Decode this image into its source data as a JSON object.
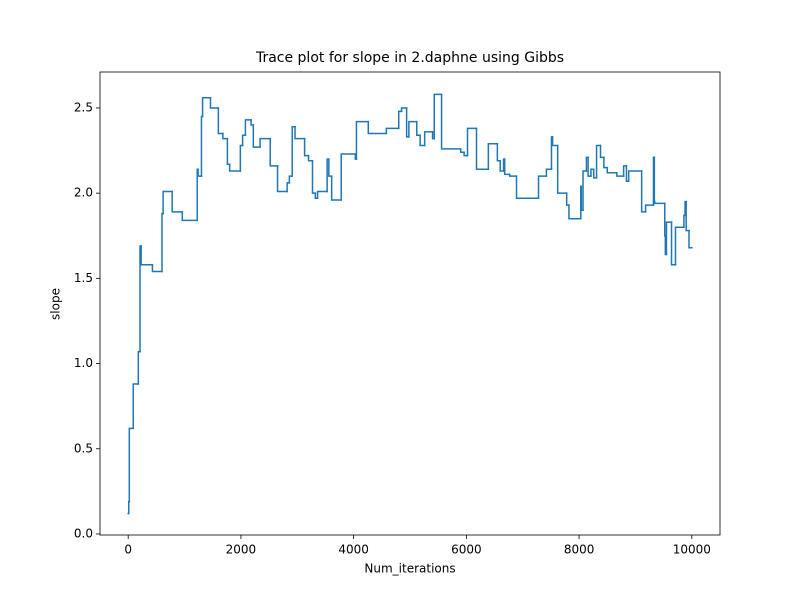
{
  "chart_data": {
    "type": "line",
    "drawstyle": "steps-post",
    "title": "Trace plot for slope in 2.daphne using Gibbs",
    "xlabel": "Num_iterations",
    "ylabel": "slope",
    "xlim": [
      -500,
      10500
    ],
    "ylim": [
      -0.006,
      2.711
    ],
    "xticks": [
      0,
      2000,
      4000,
      6000,
      8000,
      10000
    ],
    "yticks": [
      {
        "value": 0,
        "label": "0.0"
      },
      {
        "value": 0.5,
        "label": "0.5"
      },
      {
        "value": 1,
        "label": "1.0"
      },
      {
        "value": 1.5,
        "label": "1.5"
      },
      {
        "value": 2,
        "label": "2.0"
      },
      {
        "value": 2.5,
        "label": "2.5"
      }
    ],
    "series": [
      {
        "color": "#1f77b4",
        "x": [
          0,
          10,
          20,
          90,
          180,
          210,
          230,
          430,
          600,
          620,
          780,
          960,
          1225,
          1240,
          1300,
          1320,
          1460,
          1600,
          1680,
          1760,
          1800,
          1990,
          2030,
          2080,
          2180,
          2220,
          2340,
          2520,
          2650,
          2820,
          2860,
          2910,
          2960,
          3130,
          3200,
          3270,
          3320,
          3360,
          3530,
          3560,
          3610,
          3780,
          4030,
          4050,
          4260,
          4580,
          4800,
          4850,
          4940,
          4980,
          5120,
          5180,
          5260,
          5400,
          5430,
          5560,
          5900,
          5960,
          6020,
          6180,
          6390,
          6550,
          6600,
          6660,
          6680,
          6770,
          6890,
          7280,
          7420,
          7510,
          7530,
          7620,
          7780,
          7820,
          8030,
          8040,
          8070,
          8130,
          8160,
          8210,
          8260,
          8310,
          8380,
          8440,
          8500,
          8670,
          8790,
          8840,
          8880,
          9110,
          9180,
          9320,
          9335,
          9340,
          9520,
          9530,
          9550,
          9640,
          9710,
          9860,
          9880,
          9900,
          9950,
          10000
        ],
        "values": [
          0.12,
          0.19,
          0.62,
          0.88,
          1.07,
          1.69,
          1.58,
          1.54,
          1.88,
          2.01,
          1.89,
          1.84,
          2.14,
          2.1,
          2.45,
          2.56,
          2.5,
          2.35,
          2.32,
          2.17,
          2.13,
          2.28,
          2.34,
          2.43,
          2.4,
          2.27,
          2.32,
          2.16,
          2.01,
          2.06,
          2.1,
          2.39,
          2.32,
          2.22,
          2.19,
          2.0,
          1.97,
          2.01,
          2.2,
          2.1,
          1.96,
          2.23,
          2.2,
          2.42,
          2.35,
          2.38,
          2.48,
          2.5,
          2.33,
          2.42,
          2.34,
          2.28,
          2.36,
          2.32,
          2.58,
          2.26,
          2.24,
          2.22,
          2.38,
          2.14,
          2.29,
          2.19,
          2.13,
          2.2,
          2.11,
          2.1,
          1.97,
          2.1,
          2.14,
          2.33,
          2.28,
          2.0,
          1.93,
          1.85,
          2.04,
          1.9,
          2.13,
          2.21,
          2.1,
          2.14,
          2.09,
          2.28,
          2.21,
          2.15,
          2.12,
          2.1,
          2.16,
          2.07,
          2.13,
          1.89,
          1.93,
          2.21,
          1.95,
          1.94,
          1.75,
          1.64,
          1.83,
          1.58,
          1.8,
          1.87,
          1.95,
          1.78,
          1.68,
          1.68
        ]
      }
    ]
  }
}
